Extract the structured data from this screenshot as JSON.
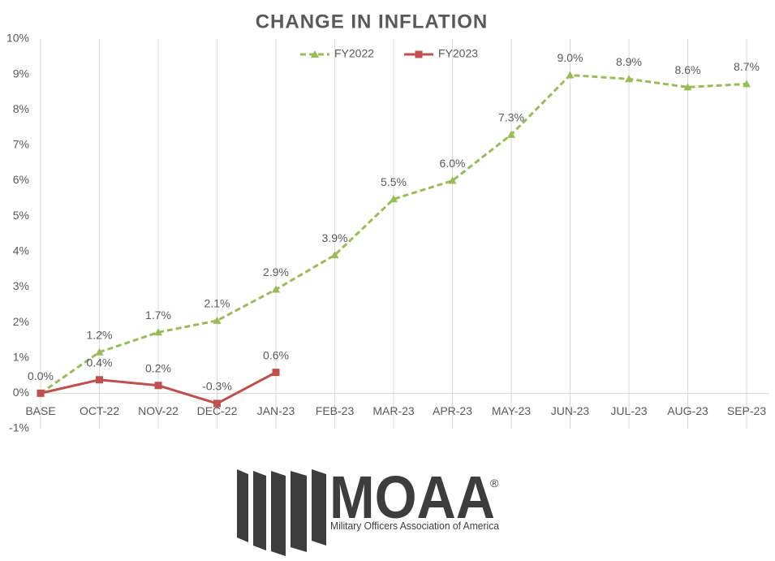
{
  "chart_data": {
    "type": "line",
    "title": "CHANGE IN INFLATION",
    "categories": [
      "BASE",
      "OCT-22",
      "NOV-22",
      "DEC-22",
      "JAN-23",
      "FEB-23",
      "MAR-23",
      "APR-23",
      "MAY-23",
      "JUN-23",
      "JUL-23",
      "AUG-23",
      "SEP-23"
    ],
    "series": [
      {
        "name": "FY2022",
        "color": "#9bbb59",
        "marker": "triangle",
        "dashed": true,
        "values": [
          0,
          1.16,
          1.72,
          2.05,
          2.93,
          3.9,
          5.48,
          6.0,
          7.3,
          8.98,
          8.87,
          8.64,
          8.73
        ],
        "value_labels": [
          "0.0%",
          "1.2%",
          "1.7%",
          "2.1%",
          "2.9%",
          "3.9%",
          "5.5%",
          "6.0%",
          "7.3%",
          "9.0%",
          "8.9%",
          "8.6%",
          "8.7%"
        ]
      },
      {
        "name": "FY2023",
        "color": "#c0504d",
        "marker": "square",
        "dashed": false,
        "values": [
          0,
          0.38,
          0.22,
          -0.29,
          0.59,
          null,
          null,
          null,
          null,
          null,
          null,
          null,
          null
        ],
        "value_labels": [
          null,
          "0.4%",
          "0.2%",
          "-0.3%",
          "0.6%",
          null,
          null,
          null,
          null,
          null,
          null,
          null,
          null
        ]
      }
    ],
    "ylim": [
      -1,
      10
    ],
    "yticks": [
      {
        "value": -1,
        "label": "-1%"
      },
      {
        "value": 0,
        "label": "0%"
      },
      {
        "value": 1,
        "label": "1%"
      },
      {
        "value": 2,
        "label": "2%"
      },
      {
        "value": 3,
        "label": "3%"
      },
      {
        "value": 4,
        "label": "4%"
      },
      {
        "value": 5,
        "label": "5%"
      },
      {
        "value": 6,
        "label": "6%"
      },
      {
        "value": 7,
        "label": "7%"
      },
      {
        "value": 8,
        "label": "8%"
      },
      {
        "value": 9,
        "label": "9%"
      },
      {
        "value": 10,
        "label": "10%"
      }
    ],
    "grid": "vertical",
    "legend": "top"
  },
  "logo": {
    "name": "MOAA",
    "mark": "®",
    "tagline": "Military Officers Association of America"
  }
}
